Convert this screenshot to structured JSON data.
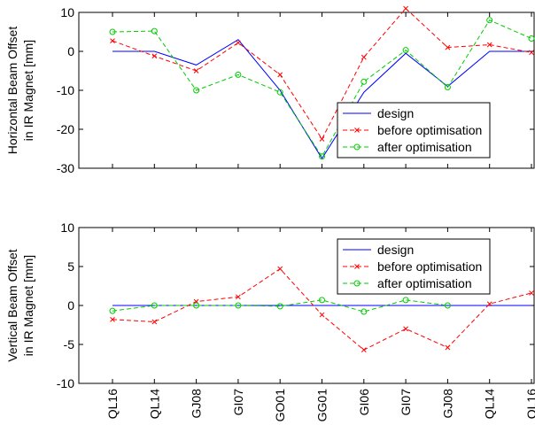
{
  "chart_data": [
    {
      "type": "line",
      "categories": [
        "QL16",
        "QL14",
        "GJ08",
        "GI07",
        "GO01",
        "GG01",
        "GI06",
        "GI07",
        "GJ08",
        "QL14",
        "QL16"
      ],
      "ylabel": [
        "Horizontal Beam Offset",
        "in IR Magnet [mm]"
      ],
      "ylim": [
        -30,
        10
      ],
      "yticks": [
        -30,
        -20,
        -10,
        0,
        10
      ],
      "grid": false,
      "legend": "bottom-right",
      "series": [
        {
          "name": "design",
          "color": "#0000ff",
          "dash": "solid",
          "marker": "none",
          "values": [
            0,
            0,
            -3.5,
            3,
            -10,
            -27.5,
            -10.5,
            -0.5,
            -9,
            0,
            0
          ]
        },
        {
          "name": "before optimisation",
          "color": "#ff0000",
          "dash": "dashed",
          "marker": "x",
          "values": [
            2.7,
            -1.2,
            -5,
            2.2,
            -6,
            -22.5,
            -1.5,
            11,
            1,
            1.7,
            -0.3
          ]
        },
        {
          "name": "after optimisation",
          "color": "#00cc00",
          "dash": "dashed",
          "marker": "circle",
          "values": [
            5,
            5.2,
            -10,
            -6,
            -10.5,
            -27,
            -7.8,
            0.3,
            -9.2,
            8,
            3.3
          ]
        }
      ]
    },
    {
      "type": "line",
      "categories": [
        "QL16",
        "QL14",
        "GJ08",
        "GI07",
        "GO01",
        "GG01",
        "GI06",
        "GI07",
        "GJ08",
        "QL14",
        "QL16"
      ],
      "ylabel": [
        "Vertical Beam Offset",
        "in IR Magnet [mm]"
      ],
      "ylim": [
        -10,
        10
      ],
      "yticks": [
        -10,
        -5,
        0,
        5,
        10
      ],
      "grid": false,
      "legend": "top-right",
      "series": [
        {
          "name": "design",
          "color": "#0000ff",
          "dash": "solid",
          "marker": "none",
          "values": [
            0,
            0,
            0,
            0,
            0,
            0,
            0,
            0,
            0,
            0,
            0
          ]
        },
        {
          "name": "before optimisation",
          "color": "#ff0000",
          "dash": "dashed",
          "marker": "x",
          "values": [
            -1.8,
            -2.1,
            0.5,
            1.1,
            4.7,
            -1.2,
            -5.7,
            -3,
            -5.4,
            0.2,
            1.6
          ]
        },
        {
          "name": "after optimisation",
          "color": "#00cc00",
          "dash": "dashed",
          "marker": "circle",
          "values": [
            -0.7,
            0,
            0,
            0,
            -0.1,
            0.7,
            -0.8,
            0.7,
            0,
            null,
            null
          ]
        }
      ]
    }
  ]
}
